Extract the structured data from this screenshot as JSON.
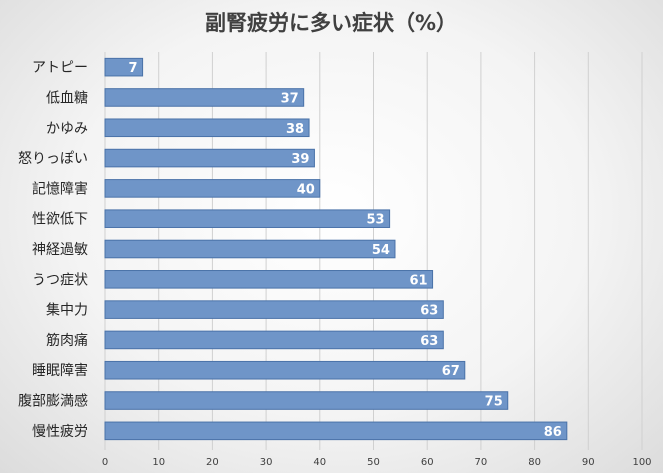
{
  "chart_data": {
    "type": "bar",
    "orientation": "horizontal",
    "title": "副腎疲労に多い症状（%）",
    "categories": [
      "アトピー",
      "低血糖",
      "かゆみ",
      "怒りっぽい",
      "記憶障害",
      "性欲低下",
      "神経過敏",
      "うつ症状",
      "集中力",
      "筋肉痛",
      "睡眠障害",
      "腹部膨満感",
      "慢性疲労"
    ],
    "values": [
      7,
      37,
      38,
      39,
      40,
      53,
      54,
      61,
      63,
      63,
      67,
      75,
      86
    ],
    "xlim": [
      0,
      100
    ],
    "xticks": [
      "0",
      "10",
      "20",
      "30",
      "40",
      "50",
      "60",
      "70",
      "80",
      "90",
      "100"
    ],
    "grid": true,
    "bar_color": "#6f95c8",
    "bar_edge_color": "#4a72a8",
    "grid_color": "#d0d0d0"
  }
}
